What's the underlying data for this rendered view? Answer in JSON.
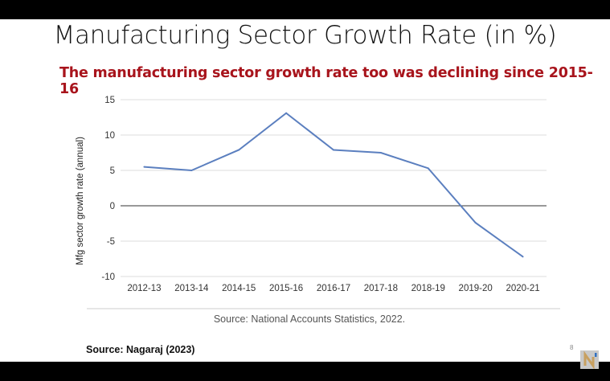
{
  "slide": {
    "title": "Manufacturing Sector Growth Rate (in %)",
    "subtitle": "The manufacturing sector growth rate too was declining since 2015-16",
    "chart_source": "Source: National Accounts Statistics, 2022.",
    "source": "Source: Nagaraj (2023)",
    "page_number": "8",
    "logo_text": "NEWS"
  },
  "colors": {
    "subtitle": "#a8141c",
    "line": "#5b7fbf",
    "grid": "#dddddd",
    "zero_line": "#333333"
  },
  "chart_data": {
    "type": "line",
    "title": "",
    "xlabel": "",
    "ylabel": "Mfg sector growth rate (annual)",
    "categories": [
      "2012-13",
      "2013-14",
      "2014-15",
      "2015-16",
      "2016-17",
      "2017-18",
      "2018-19",
      "2019-20",
      "2020-21"
    ],
    "series": [
      {
        "values": [
          5.5,
          5.0,
          7.9,
          13.1,
          7.9,
          7.5,
          5.3,
          -2.4,
          -7.2
        ]
      }
    ],
    "ylim": [
      -10,
      15
    ],
    "yticks": [
      "15",
      "10",
      "5",
      "0",
      "-5",
      "-10"
    ],
    "grid": true,
    "legend": "none"
  }
}
